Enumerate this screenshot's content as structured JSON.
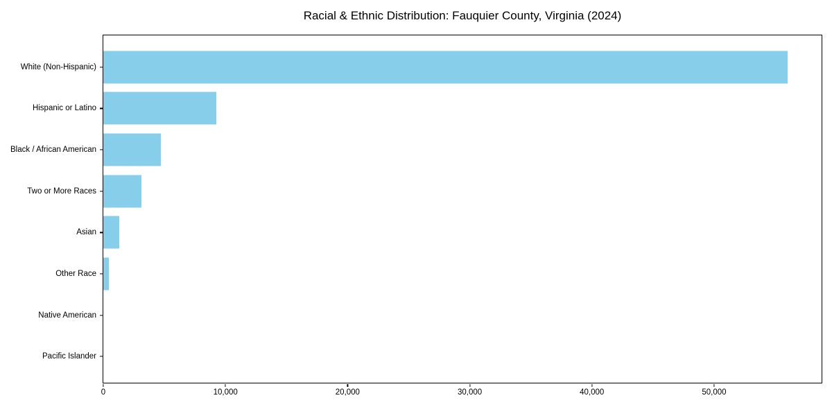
{
  "title": "Racial & Ethnic Distribution: Fauquier County, Virginia (2024)",
  "colors": {
    "bar": "#87CEEB",
    "axis": "#000000",
    "background": "#FFFFFF",
    "text": "#000000"
  },
  "chart_data": {
    "type": "bar",
    "orientation": "horizontal",
    "title": "Racial & Ethnic Distribution: Fauquier County, Virginia (2024)",
    "xlabel": "",
    "ylabel": "",
    "categories": [
      "White (Non-Hispanic)",
      "Hispanic or Latino",
      "Black / African American",
      "Two or More Races",
      "Asian",
      "Other Race",
      "Native American",
      "Pacific Islander"
    ],
    "values": [
      56000,
      9250,
      4700,
      3100,
      1300,
      450,
      0,
      0
    ],
    "xlim": [
      0,
      58800
    ],
    "x_ticks": [
      0,
      10000,
      20000,
      30000,
      40000,
      50000
    ],
    "x_tick_labels": [
      "0",
      "10,000",
      "20,000",
      "30,000",
      "40,000",
      "50,000"
    ],
    "grid": false,
    "legend": "none",
    "bar_color": "#87CEEB"
  }
}
